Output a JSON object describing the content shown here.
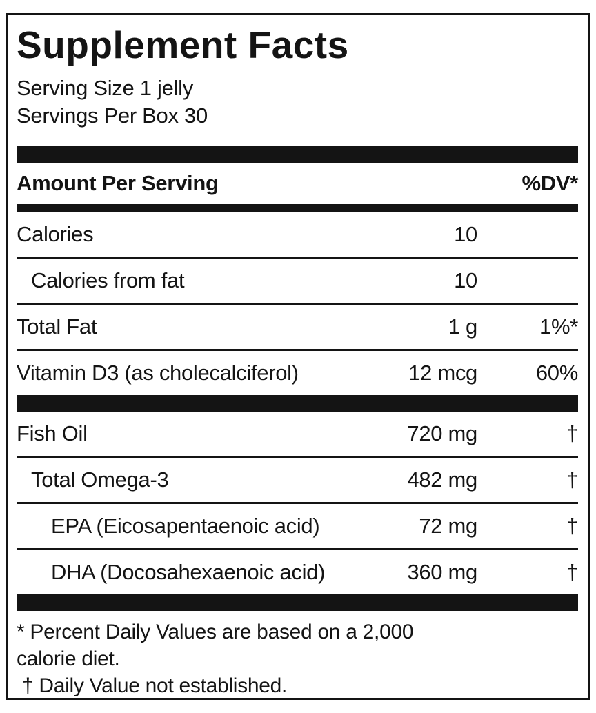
{
  "colors": {
    "ink": "#141414",
    "paper": "#ffffff"
  },
  "label": {
    "title": "Supplement Facts",
    "serving": {
      "size_line": "Serving Size 1 jelly",
      "per_box_line": "Servings Per Box 30"
    },
    "columns": {
      "amount_header": "Amount Per Serving",
      "dv_header": "%DV*"
    },
    "sections": [
      {
        "rows": [
          {
            "name": "Calories",
            "amount": "10",
            "dv": "",
            "indent": 0
          },
          {
            "name": "Calories from fat",
            "amount": "10",
            "dv": "",
            "indent": 1
          },
          {
            "name": "Total Fat",
            "amount": "1 g",
            "dv": "1%*",
            "indent": 0
          },
          {
            "name": "Vitamin D3 (as cholecalciferol)",
            "amount": "12 mcg",
            "dv": "60%",
            "indent": 0
          }
        ]
      },
      {
        "rows": [
          {
            "name": "Fish Oil",
            "amount": "720 mg",
            "dv": "†",
            "indent": 0
          },
          {
            "name": "Total Omega-3",
            "amount": "482 mg",
            "dv": "†",
            "indent": 1
          },
          {
            "name": "EPA (Eicosapentaenoic acid)",
            "amount": "72 mg",
            "dv": "†",
            "indent": 2
          },
          {
            "name": "DHA (Docosahexaenoic acid)",
            "amount": "360 mg",
            "dv": "†",
            "indent": 2
          }
        ]
      }
    ],
    "footnotes": {
      "lines": [
        "* Percent Daily Values are based on a 2,000",
        "calorie diet.",
        "† Daily Value not established."
      ]
    }
  }
}
